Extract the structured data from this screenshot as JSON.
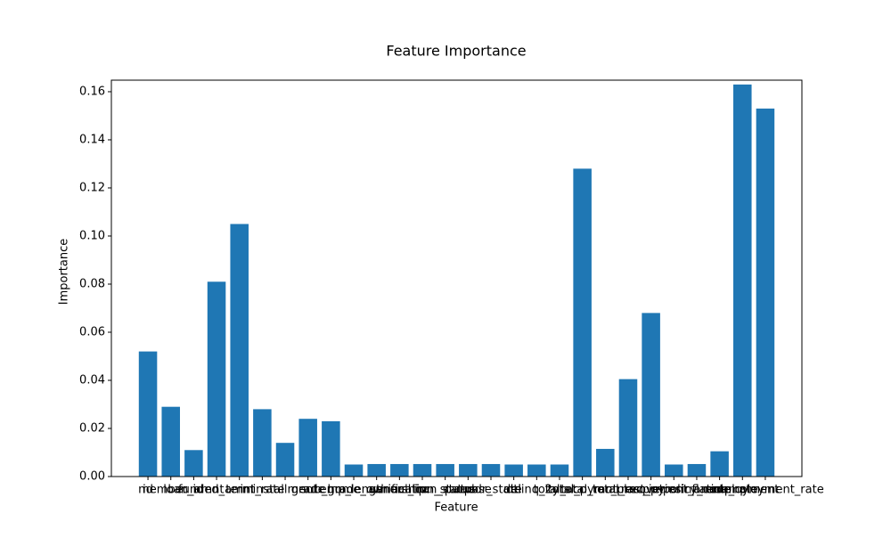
{
  "chart_data": {
    "type": "bar",
    "title": "Feature Importance",
    "x_label": "Feature",
    "y_label": "Importance",
    "categories": [
      "id",
      "member_id",
      "loan_amnt",
      "funded_amnt",
      "term",
      "int_rate",
      "installment",
      "grade",
      "sub_grade",
      "emp_length",
      "home_ownership",
      "annual_inc",
      "verification_status",
      "loan_status",
      "purpose",
      "addr_state",
      "dti",
      "delinq_2yrs",
      "total_acc",
      "total_pymnt",
      "total_rec_prncp",
      "total_rec_int",
      "recoveries",
      "last_pymnt_amnt",
      "policy_code",
      "inflation_rate",
      "employment",
      "unemployment_rate"
    ],
    "values": [
      0.052,
      0.029,
      0.011,
      0.081,
      0.105,
      0.028,
      0.014,
      0.024,
      0.023,
      0.005,
      0.0052,
      0.0052,
      0.0052,
      0.0052,
      0.0052,
      0.0052,
      0.005,
      0.005,
      0.005,
      0.128,
      0.0115,
      0.0405,
      0.068,
      0.005,
      0.0052,
      0.0105,
      0.163,
      0.153
    ],
    "color": "#1f77b4",
    "ylim": [
      0,
      0.1648
    ],
    "yticks": [
      {
        "value": 0,
        "label": "0.00"
      },
      {
        "value": 0.02,
        "label": "0.02"
      },
      {
        "value": 0.04,
        "label": "0.04"
      },
      {
        "value": 0.06,
        "label": "0.06"
      },
      {
        "value": 0.08,
        "label": "0.08"
      },
      {
        "value": 0.1,
        "label": "0.10"
      },
      {
        "value": 0.12,
        "label": "0.12"
      },
      {
        "value": 0.14,
        "label": "0.14"
      },
      {
        "value": 0.16,
        "label": "0.16"
      }
    ]
  }
}
